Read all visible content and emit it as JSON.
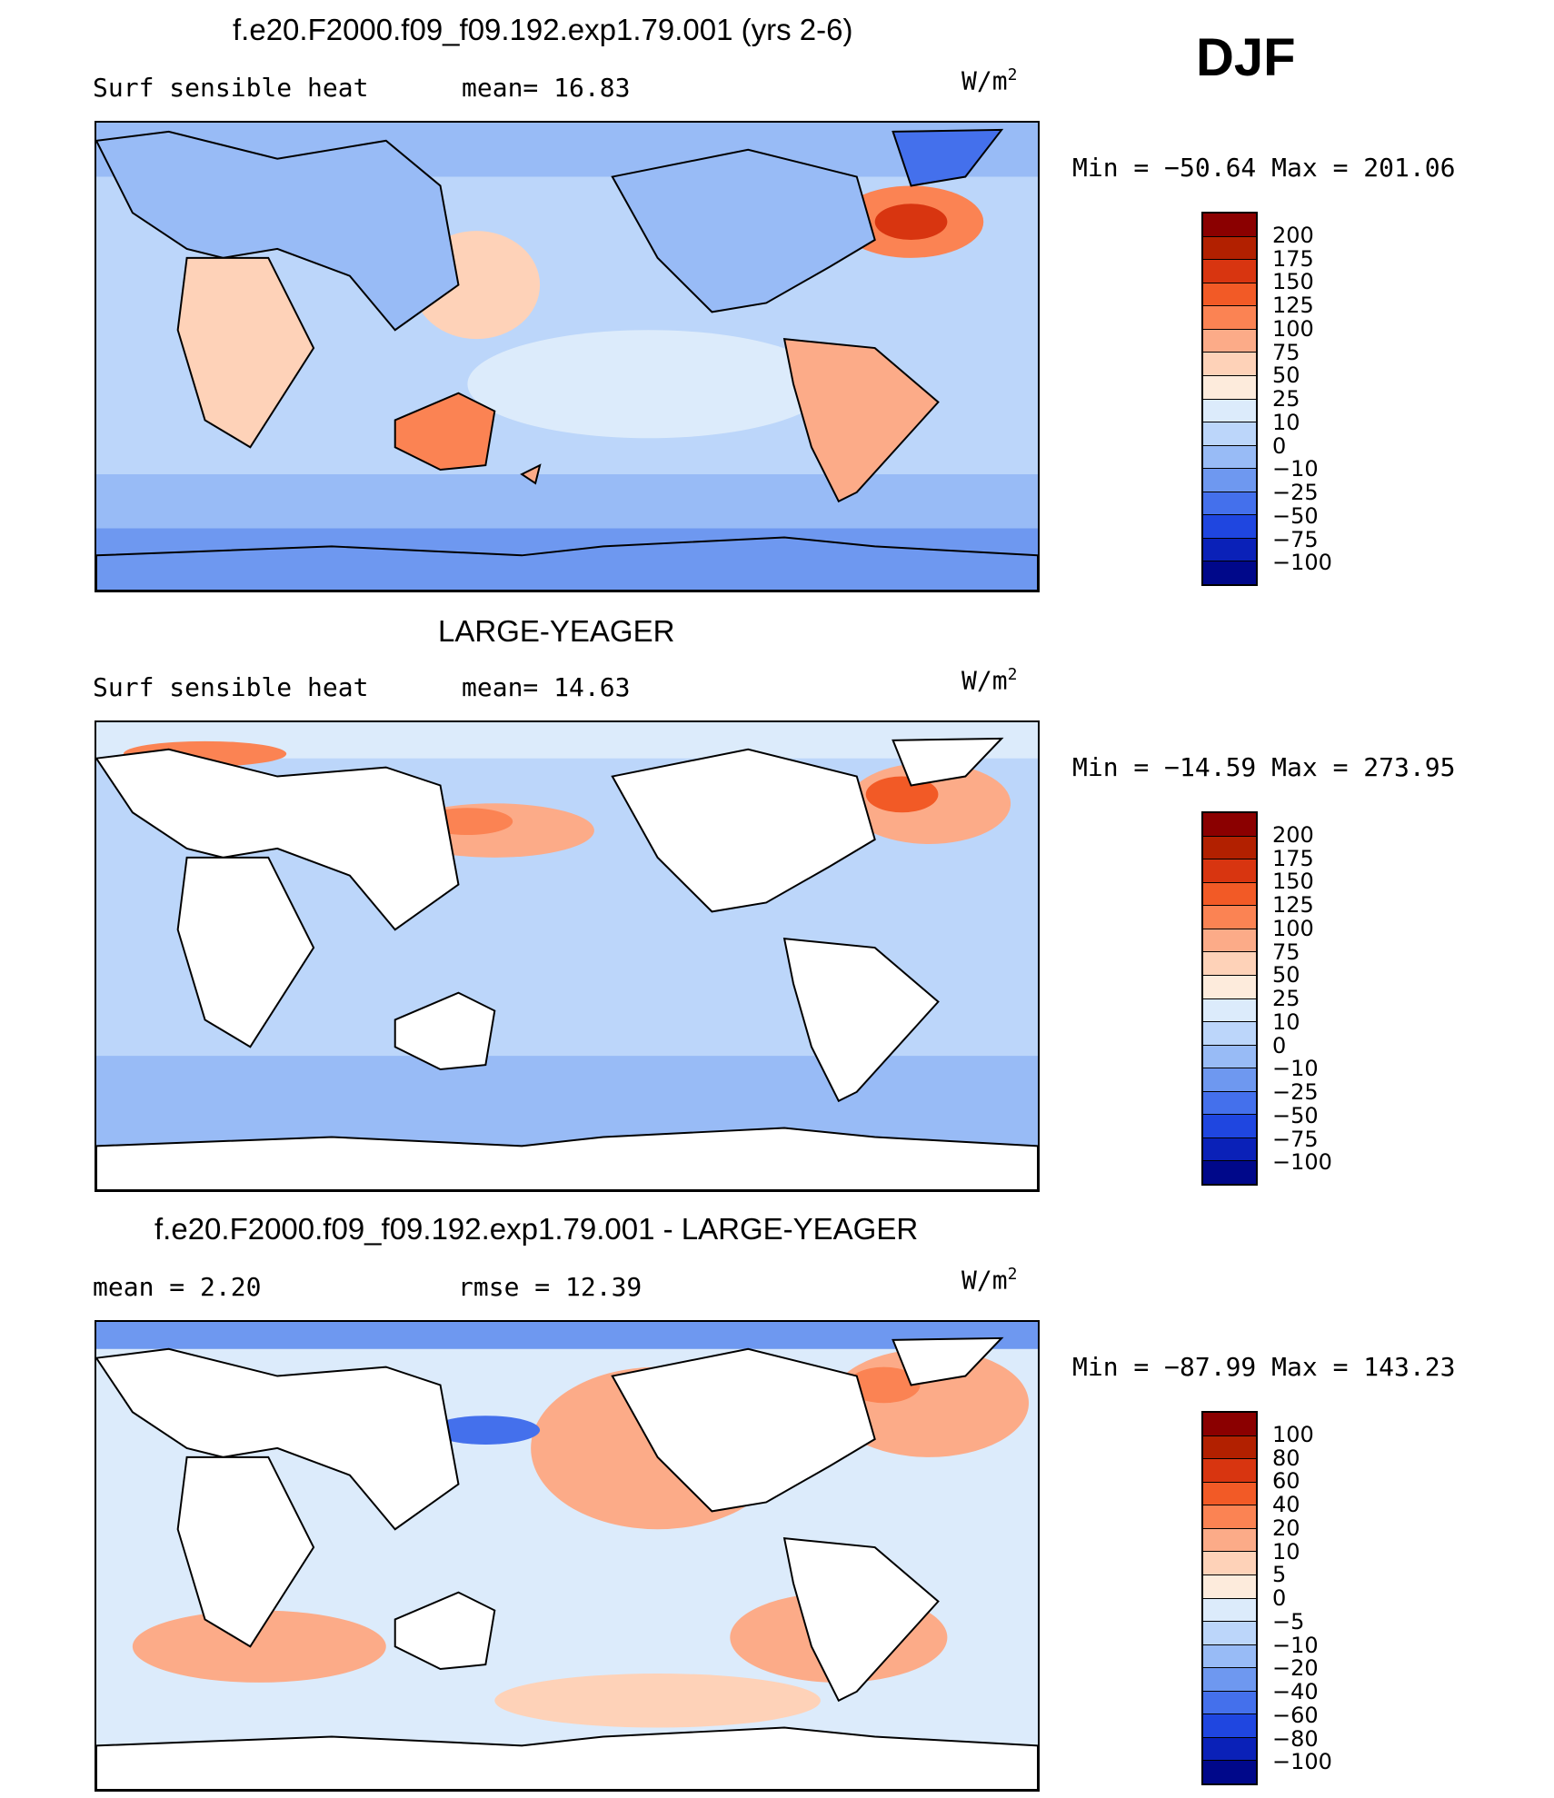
{
  "season": "DJF",
  "units_label": "W/m",
  "units_exp": "2",
  "panels": [
    {
      "title": "f.e20.F2000.f09_f09.192.exp1.79.001 (yrs 2-6)",
      "left_label": "Surf sensible heat",
      "mid_label": "mean=   16.83",
      "min_max": "Min  =  −50.64  Max  =  201.06",
      "colorbar_labels": [
        "200",
        "175",
        "150",
        "125",
        "100",
        "75",
        "50",
        "25",
        "10",
        "0",
        "−10",
        "−25",
        "−50",
        "−75",
        "−100"
      ]
    },
    {
      "title": "LARGE-YEAGER",
      "left_label": "Surf sensible heat",
      "mid_label": "mean=   14.63",
      "min_max": "Min  =  −14.59  Max  =  273.95",
      "colorbar_labels": [
        "200",
        "175",
        "150",
        "125",
        "100",
        "75",
        "50",
        "25",
        "10",
        "0",
        "−10",
        "−25",
        "−50",
        "−75",
        "−100"
      ]
    },
    {
      "title": "f.e20.F2000.f09_f09.192.exp1.79.001 - LARGE-YEAGER",
      "left_label": "mean  =     2.20",
      "mid_label": "rmse  =     12.39",
      "min_max": "Min  =  −87.99  Max  =  143.23",
      "colorbar_labels": [
        "100",
        "80",
        "60",
        "40",
        "20",
        "10",
        "5",
        "0",
        "−5",
        "−10",
        "−20",
        "−40",
        "−60",
        "−80",
        "−100"
      ]
    }
  ],
  "colors": {
    "scale": [
      "#8b0000",
      "#b22000",
      "#d83510",
      "#f25a26",
      "#fb8353",
      "#fcab88",
      "#fed2b8",
      "#fdebdc",
      "#dcebfb",
      "#bcd6fa",
      "#98bbf6",
      "#6e98f0",
      "#4470ec",
      "#1f46e0",
      "#0a21b8",
      "#00088a"
    ],
    "land": "#ffffff",
    "coast": "#000000",
    "bg_ocean_1": "#bcd6fa",
    "bg_ocean_2": "#bcd6fa",
    "bg_ocean_3": "#dcebfb"
  }
}
